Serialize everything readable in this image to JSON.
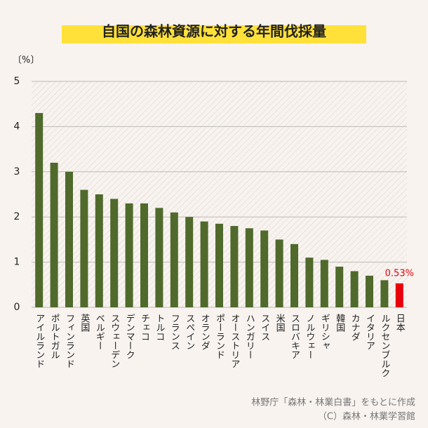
{
  "chart_data": {
    "type": "bar",
    "title": "自国の森林資源に対する年間伐採量",
    "y_label": "〔%〕",
    "categories": [
      "アイルランド",
      "ポルトガル",
      "フィンランド",
      "英国",
      "ベルギー",
      "スウェーデン",
      "デンマーク",
      "チェコ",
      "トルコ",
      "フランス",
      "スペイン",
      "オランダ",
      "ポーランド",
      "オーストリア",
      "ハンガリー",
      "スイス",
      "米国",
      "スロバキア",
      "ノルウェー",
      "ギリシャ",
      "韓国",
      "カナダ",
      "イタリア",
      "ルクセンブルク",
      "日本"
    ],
    "values": [
      4.3,
      3.2,
      3.0,
      2.6,
      2.5,
      2.4,
      2.3,
      2.3,
      2.2,
      2.1,
      2.0,
      1.9,
      1.85,
      1.8,
      1.75,
      1.7,
      1.5,
      1.4,
      1.1,
      1.05,
      0.9,
      0.8,
      0.7,
      0.6,
      0.53
    ],
    "value_labels": [
      null,
      null,
      null,
      null,
      null,
      null,
      null,
      null,
      null,
      null,
      null,
      null,
      null,
      null,
      null,
      null,
      null,
      null,
      null,
      null,
      null,
      null,
      null,
      null,
      "0.53%"
    ],
    "colors": [
      "#4f6a2b",
      "#4f6a2b",
      "#4f6a2b",
      "#4f6a2b",
      "#4f6a2b",
      "#4f6a2b",
      "#4f6a2b",
      "#4f6a2b",
      "#4f6a2b",
      "#4f6a2b",
      "#4f6a2b",
      "#4f6a2b",
      "#4f6a2b",
      "#4f6a2b",
      "#4f6a2b",
      "#4f6a2b",
      "#4f6a2b",
      "#4f6a2b",
      "#4f6a2b",
      "#4f6a2b",
      "#4f6a2b",
      "#4f6a2b",
      "#4f6a2b",
      "#4f6a2b",
      "#e8000b"
    ],
    "ylim": [
      0,
      5
    ],
    "yticks": [
      0,
      1,
      2,
      3,
      4,
      5
    ],
    "grid": true,
    "source": "林野庁「森林・林業白書」をもとに作成",
    "copyright": "（C）森林・林業学習館"
  }
}
